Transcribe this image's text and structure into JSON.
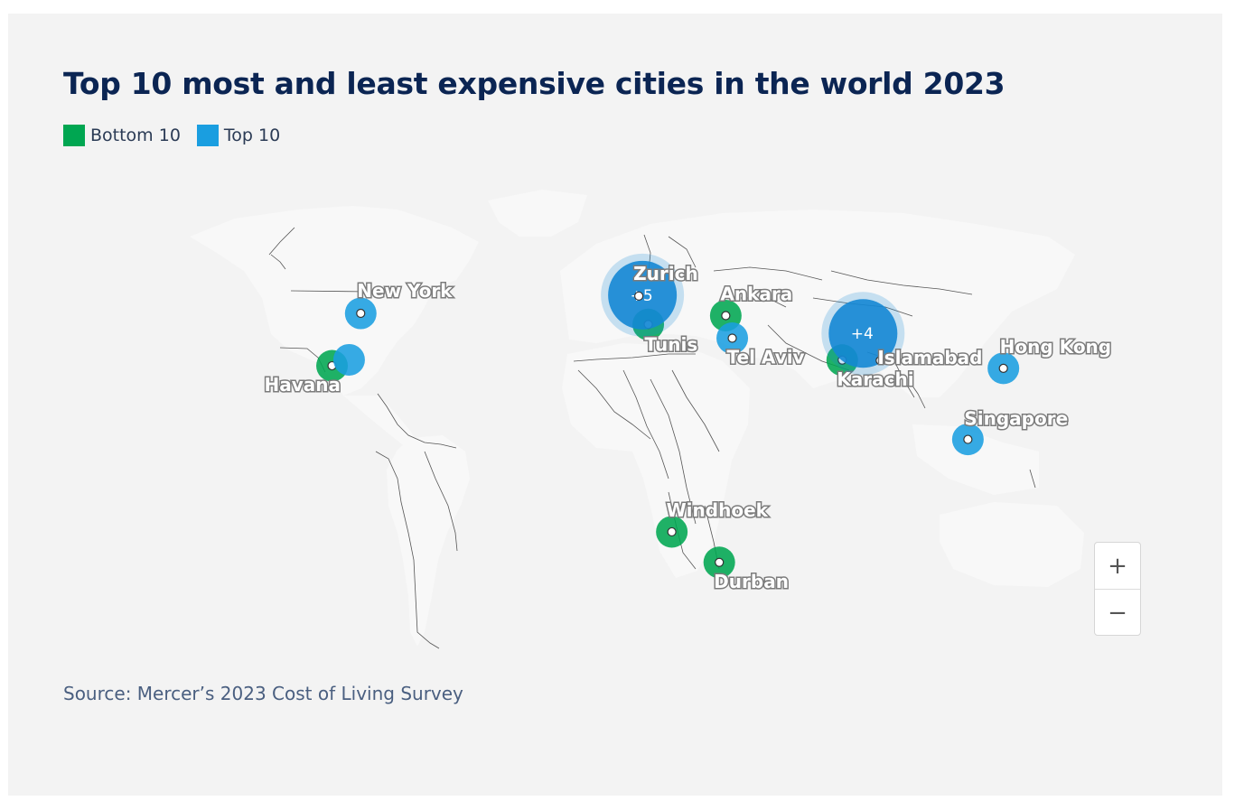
{
  "title": "Top 10 most and least expensive cities in the world 2023",
  "legend": {
    "bottom_label": "Bottom 10",
    "top_label": "Top 10"
  },
  "colors": {
    "bottom": "#00a651",
    "top": "#1a9ee0",
    "cluster": "#1487d4",
    "title": "#0b2553"
  },
  "source": "Source: Mercer’s 2023 Cost of Living Survey",
  "zoom": {
    "in_label": "+",
    "out_label": "−"
  },
  "markers": [
    {
      "name": "New York",
      "group": "top",
      "lat": 40.7,
      "lon": -74.0
    },
    {
      "name": "Havana",
      "group": "bottom",
      "lat": 23.1,
      "lon": -82.4
    },
    {
      "name": "",
      "group": "top",
      "lat": 25.0,
      "lon": -77.4
    },
    {
      "name": "Tunis",
      "group": "bottom",
      "lat": 36.8,
      "lon": 10.2
    },
    {
      "name": "Ankara",
      "group": "bottom",
      "lat": 39.9,
      "lon": 32.9
    },
    {
      "name": "Tel Aviv",
      "group": "top",
      "lat": 32.1,
      "lon": 34.8
    },
    {
      "name": "Karachi",
      "group": "bottom",
      "lat": 24.9,
      "lon": 67.0
    },
    {
      "name": "Hong Kong",
      "group": "top",
      "lat": 22.3,
      "lon": 114.2
    },
    {
      "name": "Singapore",
      "group": "top",
      "lat": 1.35,
      "lon": 103.8
    },
    {
      "name": "Windhoek",
      "group": "bottom",
      "lat": -22.6,
      "lon": 17.1
    },
    {
      "name": "Durban",
      "group": "bottom",
      "lat": -29.9,
      "lon": 31.0
    }
  ],
  "clusters": [
    {
      "name": "Zurich",
      "count_label": "+5",
      "lat": 47.4,
      "lon": 8.5
    },
    {
      "name": "Islamabad",
      "count_label": "+4",
      "lat": 33.7,
      "lon": 73.1
    }
  ]
}
